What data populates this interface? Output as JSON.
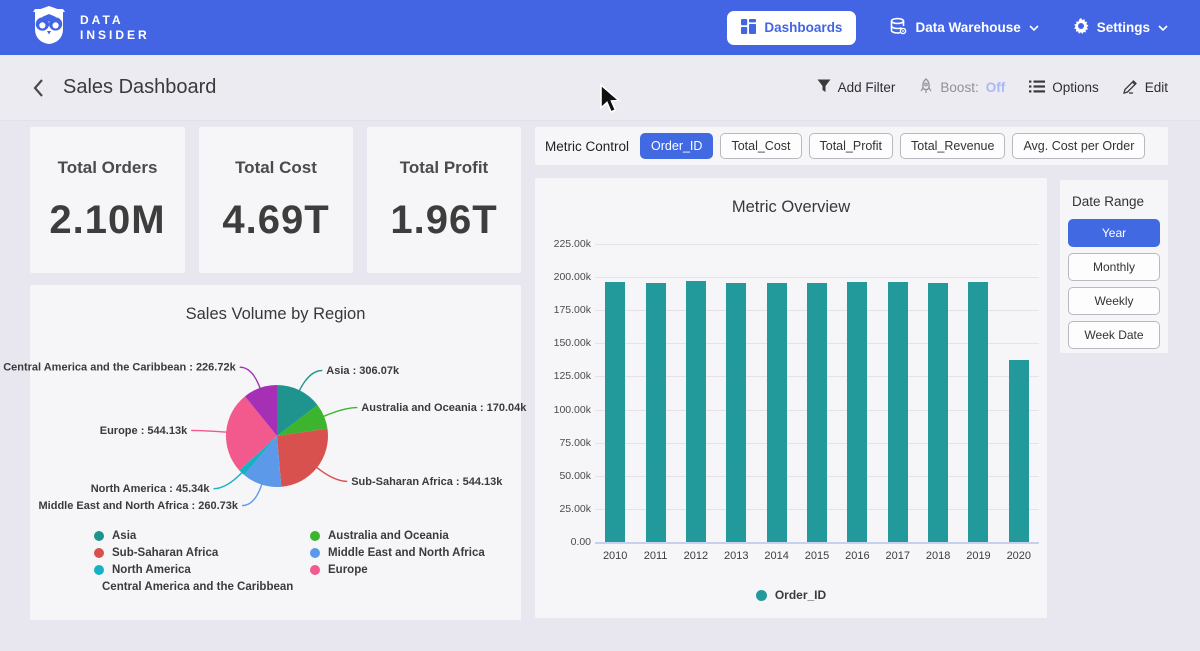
{
  "navbar": {
    "logo_line1": "DATA",
    "logo_line2": "INSIDER",
    "dashboards_label": "Dashboards",
    "data_warehouse_label": "Data Warehouse",
    "settings_label": "Settings"
  },
  "header": {
    "title": "Sales Dashboard",
    "add_filter_label": "Add Filter",
    "boost_label": "Boost:",
    "boost_value": "Off",
    "options_label": "Options",
    "edit_label": "Edit"
  },
  "kpis": [
    {
      "label": "Total Orders",
      "value": "2.10M"
    },
    {
      "label": "Total Cost",
      "value": "4.69T"
    },
    {
      "label": "Total Profit",
      "value": "1.96T"
    }
  ],
  "metric_control": {
    "label": "Metric Control",
    "options": [
      {
        "label": "Order_ID",
        "selected": true
      },
      {
        "label": "Total_Cost",
        "selected": false
      },
      {
        "label": "Total_Profit",
        "selected": false
      },
      {
        "label": "Total_Revenue",
        "selected": false
      },
      {
        "label": "Avg. Cost per Order",
        "selected": false
      }
    ]
  },
  "date_range": {
    "label": "Date Range",
    "options": [
      {
        "label": "Year",
        "selected": true
      },
      {
        "label": "Monthly",
        "selected": false
      },
      {
        "label": "Weekly",
        "selected": false
      },
      {
        "label": "Week Date",
        "selected": false
      }
    ]
  },
  "colors": {
    "navbar_blue": "#4365e4",
    "accent_blue": "#4169e2",
    "bar_teal": "#22999b",
    "boost_off": "#a9b9f2"
  },
  "chart_data": [
    {
      "type": "pie",
      "title": "Sales Volume by Region",
      "slices": [
        {
          "label": "Asia",
          "value": 306070,
          "display": "Asia : 306.07k",
          "color": "#1f948e"
        },
        {
          "label": "Australia and Oceania",
          "value": 170040,
          "display": "Australia and Oceania : 170.04k",
          "color": "#3cb42d"
        },
        {
          "label": "Sub-Saharan Africa",
          "value": 544130,
          "display": "Sub-Saharan Africa : 544.13k",
          "color": "#d9514e"
        },
        {
          "label": "Middle East and North Africa",
          "value": 260730,
          "display": "Middle East and North Africa : 260.73k",
          "color": "#5d99e9"
        },
        {
          "label": "North America",
          "value": 45340,
          "display": "North America : 45.34k",
          "color": "#17b1c5"
        },
        {
          "label": "Europe",
          "value": 544130,
          "display": "Europe : 544.13k",
          "color": "#f2598c"
        },
        {
          "label": "Central America and the Caribbean",
          "value": 226720,
          "display": "Central America and the Caribbean : 226.72k",
          "color": "#a630b5"
        }
      ],
      "legend_columns": [
        [
          "Asia",
          "Sub-Saharan Africa",
          "North America",
          "Central America and the Caribbean"
        ],
        [
          "Australia and Oceania",
          "Middle East and North Africa",
          "Europe"
        ]
      ],
      "start_angle_deg": 0,
      "direction": "clockwise"
    },
    {
      "type": "bar",
      "title": "Metric Overview",
      "categories": [
        "2010",
        "2011",
        "2012",
        "2013",
        "2014",
        "2015",
        "2016",
        "2017",
        "2018",
        "2019",
        "2020"
      ],
      "series": [
        {
          "name": "Order_ID",
          "color": "#22999b",
          "values": [
            196000,
            195800,
            196700,
            195900,
            195800,
            195900,
            196600,
            196000,
            195900,
            196000,
            137300
          ]
        }
      ],
      "ylim": [
        0,
        225000
      ],
      "y_ticks": [
        "0.00",
        "25.00k",
        "50.00k",
        "75.00k",
        "100.00k",
        "125.00k",
        "150.00k",
        "175.00k",
        "200.00k",
        "225.00k"
      ],
      "grid": true,
      "legend_position": "bottom",
      "xlabel": "",
      "ylabel": ""
    }
  ]
}
